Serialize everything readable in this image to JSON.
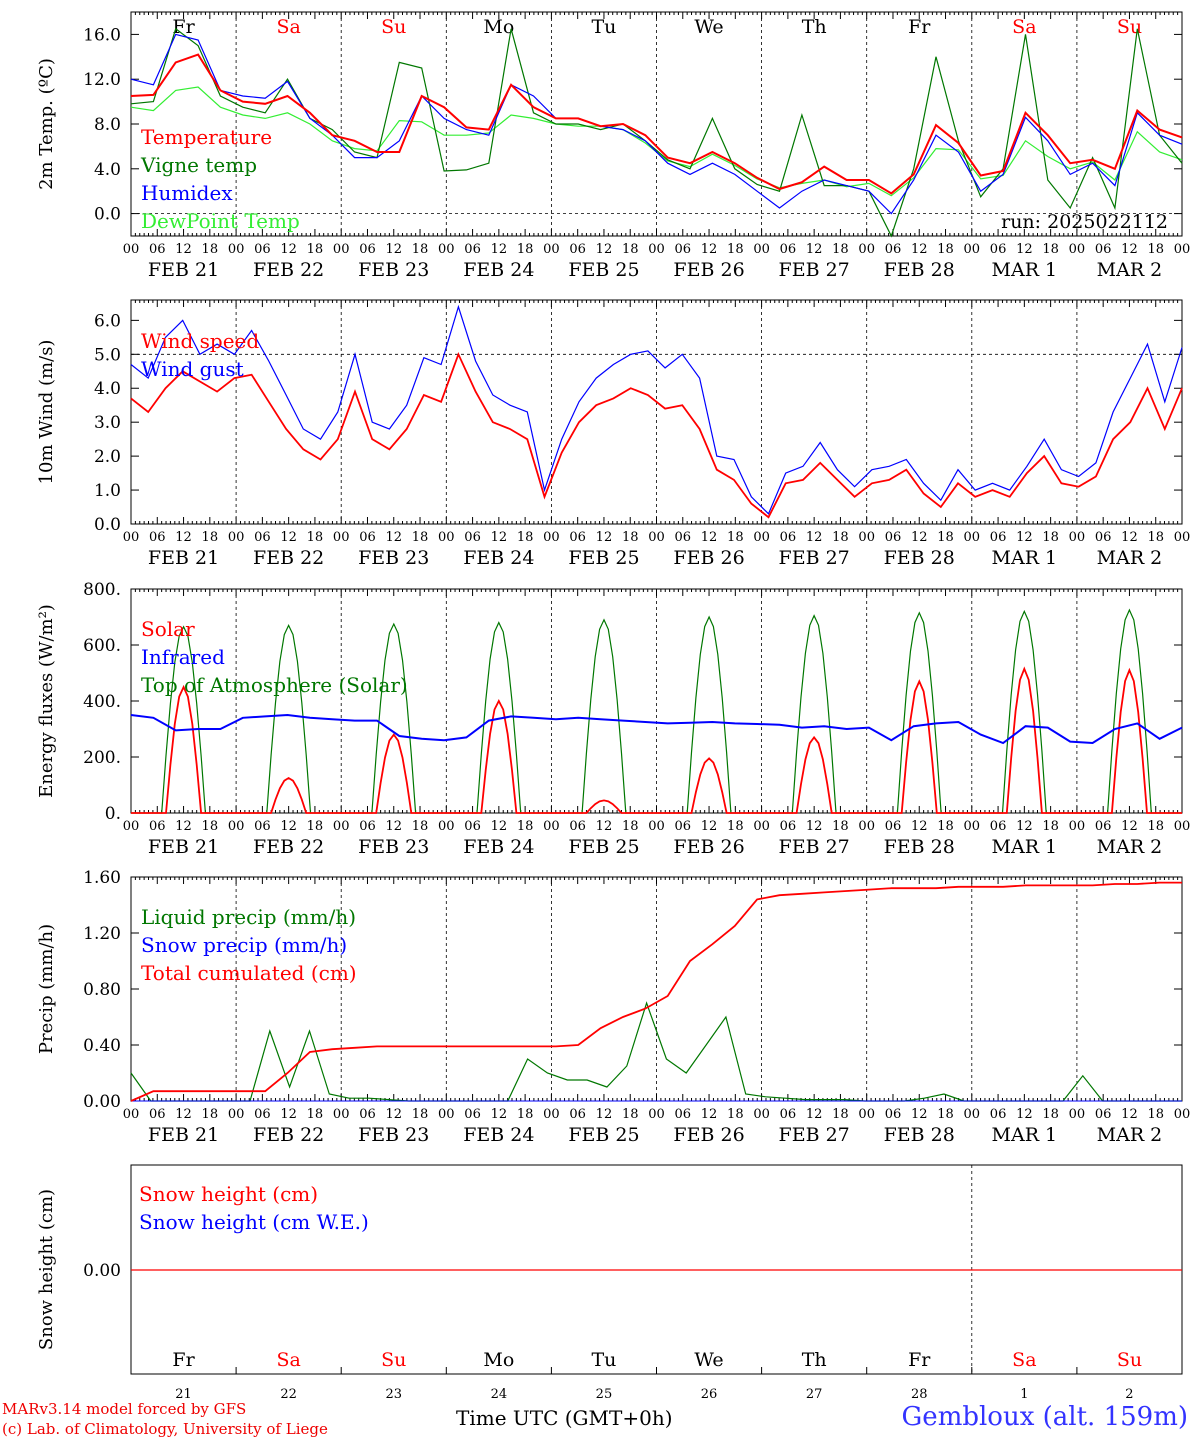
{
  "footer": {
    "credit_line1": "MARv3.14 model forced by GFS",
    "credit_line2": "(c) Lab. of Climatology, University of Liege",
    "location": "Gembloux (alt. 159m)",
    "time_label": "Time UTC (GMT+0h)",
    "run": "run: 2025022112"
  },
  "colors": {
    "red": "#ff0000",
    "green": "#007700",
    "blue": "#0000ff",
    "lightgreen": "#33ee33"
  },
  "chart_data": [
    {
      "type": "line",
      "ylabel": "2m Temp. (ºC)",
      "ylim": [
        -2,
        18
      ],
      "yticks": [
        "16.0",
        "12.0",
        "8.0",
        "4.0",
        "0.0"
      ],
      "ytick_values": [
        16,
        12,
        8,
        4,
        0
      ],
      "dashed_hline": 0,
      "day_labels": [
        "Fr",
        "Sa",
        "Su",
        "Mo",
        "Tu",
        "We",
        "Th",
        "Fr",
        "Sa",
        "Su"
      ],
      "day_label_colors": [
        "black",
        "red",
        "red",
        "black",
        "black",
        "black",
        "black",
        "black",
        "red",
        "red"
      ],
      "date_labels": [
        "FEB 21",
        "FEB 22",
        "FEB 23",
        "FEB 24",
        "FEB 25",
        "FEB 26",
        "FEB 27",
        "FEB 28",
        "MAR  1",
        "MAR  2"
      ],
      "hour_ticks": [
        "00",
        "06",
        "12",
        "18"
      ],
      "x_start": "2025-02-21 00 UTC",
      "x_step_hours": 6,
      "series": [
        {
          "name": "Temperature",
          "color": "red",
          "values": [
            10.5,
            10.6,
            13.5,
            14.2,
            11.0,
            10.0,
            9.8,
            10.5,
            9.0,
            7.0,
            6.5,
            5.5,
            5.5,
            10.5,
            9.5,
            7.7,
            7.5,
            11.5,
            9.5,
            8.5,
            8.5,
            7.8,
            8.0,
            7.0,
            5.0,
            4.5,
            5.5,
            4.5,
            3.2,
            2.2,
            2.8,
            4.2,
            3.0,
            3.0,
            1.8,
            3.5,
            7.9,
            6.3,
            3.4,
            3.8,
            9.0,
            7.0,
            4.5,
            4.8,
            4.0,
            9.2,
            7.5,
            6.8
          ]
        },
        {
          "name": "Vigne temp",
          "color": "green",
          "values": [
            9.8,
            10.0,
            16.5,
            15.0,
            10.5,
            9.5,
            9.0,
            12.0,
            8.5,
            7.5,
            5.5,
            5.0,
            13.5,
            13.0,
            3.8,
            3.9,
            4.5,
            16.5,
            9.0,
            8.0,
            8.0,
            7.5,
            8.0,
            6.5,
            4.8,
            4.0,
            8.5,
            4.0,
            2.6,
            2.0,
            8.8,
            2.5,
            2.5,
            2.0,
            -2.0,
            4.0,
            14.0,
            6.5,
            1.5,
            4.0,
            16.0,
            3.0,
            0.5,
            5.0,
            0.5,
            16.5,
            7.0,
            4.5
          ]
        },
        {
          "name": "Humidex",
          "color": "blue",
          "values": [
            12.0,
            11.5,
            16.0,
            15.5,
            11.0,
            10.5,
            10.3,
            11.8,
            8.5,
            7.0,
            5.0,
            5.0,
            6.5,
            10.5,
            8.5,
            7.5,
            7.0,
            11.5,
            10.5,
            8.5,
            8.5,
            7.8,
            7.5,
            6.5,
            4.5,
            3.5,
            4.5,
            3.5,
            2.0,
            0.5,
            2.0,
            3.0,
            2.5,
            2.0,
            0.0,
            3.0,
            7.0,
            5.5,
            2.0,
            3.5,
            8.6,
            6.5,
            3.5,
            4.5,
            2.5,
            9.0,
            7.0,
            6.2
          ]
        },
        {
          "name": "DewPoint Temp",
          "color": "lightgreen",
          "values": [
            9.5,
            9.2,
            11.0,
            11.3,
            9.5,
            8.8,
            8.5,
            9.0,
            8.0,
            6.5,
            5.8,
            5.6,
            8.3,
            8.2,
            7.0,
            7.0,
            7.2,
            8.8,
            8.5,
            8.0,
            7.8,
            7.8,
            7.5,
            6.3,
            4.7,
            4.2,
            5.3,
            4.3,
            3.1,
            2.3,
            2.7,
            3.0,
            2.4,
            2.7,
            1.6,
            3.2,
            5.8,
            5.7,
            3.1,
            3.4,
            6.5,
            5.1,
            4.0,
            4.6,
            3.0,
            7.3,
            5.5,
            4.8
          ]
        }
      ]
    },
    {
      "type": "line",
      "ylabel": "10m Wind (m/s)",
      "ylim": [
        0,
        6.6
      ],
      "yticks": [
        "6.0",
        "5.0",
        "4.0",
        "3.0",
        "2.0",
        "1.0",
        "0.0"
      ],
      "ytick_values": [
        6,
        5,
        4,
        3,
        2,
        1,
        0
      ],
      "dashed_hline": 5,
      "date_labels": [
        "FEB 21",
        "FEB 22",
        "FEB 23",
        "FEB 24",
        "FEB 25",
        "FEB 26",
        "FEB 27",
        "FEB 28",
        "MAR  1",
        "MAR  2"
      ],
      "hour_ticks": [
        "00",
        "06",
        "12",
        "18"
      ],
      "series": [
        {
          "name": "Wind speed",
          "color": "red",
          "values": [
            3.7,
            3.3,
            4.0,
            4.5,
            4.2,
            3.9,
            4.3,
            4.4,
            3.6,
            2.8,
            2.2,
            1.9,
            2.5,
            3.9,
            2.5,
            2.2,
            2.8,
            3.8,
            3.6,
            5.0,
            3.9,
            3.0,
            2.8,
            2.5,
            0.8,
            2.1,
            3.0,
            3.5,
            3.7,
            4.0,
            3.8,
            3.4,
            3.5,
            2.8,
            1.6,
            1.3,
            0.6,
            0.2,
            1.2,
            1.3,
            1.8,
            1.3,
            0.8,
            1.2,
            1.3,
            1.6,
            0.9,
            0.5,
            1.2,
            0.8,
            1.0,
            0.8,
            1.5,
            2.0,
            1.2,
            1.1,
            1.4,
            2.5,
            3.0,
            4.0,
            2.8,
            4.0
          ]
        },
        {
          "name": "Wind gust",
          "color": "blue",
          "values": [
            4.7,
            4.3,
            5.5,
            6.0,
            5.0,
            5.3,
            5.0,
            5.7,
            4.8,
            3.8,
            2.8,
            2.5,
            3.3,
            5.0,
            3.0,
            2.8,
            3.5,
            4.9,
            4.7,
            6.4,
            4.8,
            3.8,
            3.5,
            3.3,
            1.0,
            2.5,
            3.6,
            4.3,
            4.7,
            5.0,
            5.1,
            4.6,
            5.0,
            4.3,
            2.0,
            1.9,
            0.8,
            0.3,
            1.5,
            1.7,
            2.4,
            1.6,
            1.1,
            1.6,
            1.7,
            1.9,
            1.2,
            0.7,
            1.6,
            1.0,
            1.2,
            1.0,
            1.7,
            2.5,
            1.6,
            1.4,
            1.8,
            3.3,
            4.3,
            5.3,
            3.6,
            5.2
          ]
        }
      ]
    },
    {
      "type": "line",
      "ylabel": "Energy fluxes (W/m²)",
      "ylim": [
        0,
        800
      ],
      "yticks": [
        "800.",
        "600.",
        "400.",
        "200.",
        "0."
      ],
      "ytick_values": [
        800,
        600,
        400,
        200,
        0
      ],
      "date_labels": [
        "FEB 21",
        "FEB 22",
        "FEB 23",
        "FEB 24",
        "FEB 25",
        "FEB 26",
        "FEB 27",
        "FEB 28",
        "MAR  1",
        "MAR  2"
      ],
      "hour_ticks": [
        "00",
        "06",
        "12",
        "18"
      ],
      "series": [
        {
          "name": "Solar",
          "color": "red",
          "daily_peak": [
            450,
            125,
            280,
            400,
            45,
            195,
            270,
            470,
            515,
            510
          ]
        },
        {
          "name": "Infrared",
          "color": "blue",
          "values": [
            350,
            340,
            295,
            300,
            300,
            340,
            345,
            350,
            340,
            335,
            330,
            330,
            275,
            265,
            260,
            270,
            330,
            345,
            340,
            335,
            340,
            335,
            330,
            325,
            320,
            322,
            325,
            320,
            318,
            315,
            305,
            310,
            300,
            305,
            260,
            310,
            320,
            325,
            280,
            250,
            310,
            305,
            255,
            250,
            300,
            320,
            265,
            305
          ]
        },
        {
          "name": "Top of Atmosphere (Solar)",
          "color": "green",
          "daily_peak": [
            665,
            670,
            675,
            680,
            690,
            700,
            705,
            715,
            720,
            725
          ]
        }
      ]
    },
    {
      "type": "line",
      "ylabel": "Precip (mm/h)",
      "ylim": [
        0,
        1.6
      ],
      "yticks": [
        "1.60",
        "1.20",
        "0.80",
        "0.40",
        "0.00"
      ],
      "ytick_values": [
        1.6,
        1.2,
        0.8,
        0.4,
        0
      ],
      "date_labels": [
        "FEB 21",
        "FEB 22",
        "FEB 23",
        "FEB 24",
        "FEB 25",
        "FEB 26",
        "FEB 27",
        "FEB 28",
        "MAR  1",
        "MAR  2"
      ],
      "hour_ticks": [
        "00",
        "06",
        "12",
        "18"
      ],
      "series": [
        {
          "name": "Liquid precip (mm/h)",
          "color": "green",
          "values": [
            0.2,
            0.0,
            0.0,
            0.0,
            0.0,
            0.0,
            0.0,
            0.5,
            0.1,
            0.5,
            0.05,
            0.02,
            0.02,
            0.01,
            0.0,
            0.0,
            0.0,
            0.0,
            0.0,
            0.0,
            0.3,
            0.2,
            0.15,
            0.15,
            0.1,
            0.25,
            0.7,
            0.3,
            0.2,
            0.4,
            0.6,
            0.05,
            0.03,
            0.02,
            0.01,
            0.01,
            0.01,
            0.0,
            0.0,
            0.0,
            0.02,
            0.05,
            0.0,
            0.0,
            0.0,
            0.0,
            0.0,
            0.0,
            0.18,
            0.0,
            0.0,
            0.0,
            0.0,
            0.0
          ]
        },
        {
          "name": "Snow precip (mm/h)",
          "color": "blue",
          "values": [
            0,
            0,
            0,
            0,
            0,
            0,
            0,
            0,
            0,
            0
          ]
        },
        {
          "name": "Total cumulated (cm)",
          "color": "red",
          "values": [
            0.0,
            0.07,
            0.07,
            0.07,
            0.07,
            0.07,
            0.07,
            0.2,
            0.35,
            0.37,
            0.38,
            0.39,
            0.39,
            0.39,
            0.39,
            0.39,
            0.39,
            0.39,
            0.39,
            0.39,
            0.4,
            0.52,
            0.6,
            0.66,
            0.75,
            1.0,
            1.12,
            1.25,
            1.44,
            1.47,
            1.48,
            1.49,
            1.5,
            1.51,
            1.52,
            1.52,
            1.52,
            1.53,
            1.53,
            1.53,
            1.54,
            1.54,
            1.54,
            1.54,
            1.55,
            1.55,
            1.56,
            1.56
          ]
        }
      ]
    },
    {
      "type": "line",
      "ylabel": "Snow height (cm)",
      "yticks": [
        "0.00"
      ],
      "ytick_values": [
        0
      ],
      "day_labels": [
        "Fr",
        "Sa",
        "Su",
        "Mo",
        "Tu",
        "We",
        "Th",
        "Fr",
        "Sa",
        "Su"
      ],
      "day_label_colors": [
        "black",
        "red",
        "red",
        "black",
        "black",
        "black",
        "black",
        "black",
        "red",
        "red"
      ],
      "day_numbers": [
        "21",
        "22",
        "23",
        "24",
        "25",
        "26",
        "27",
        "28",
        "1",
        "2"
      ],
      "series": [
        {
          "name": "Snow height (cm)",
          "color": "red",
          "values": [
            0,
            0
          ]
        },
        {
          "name": "Snow height (cm W.E.)",
          "color": "blue",
          "values": [
            0,
            0
          ]
        }
      ]
    }
  ]
}
